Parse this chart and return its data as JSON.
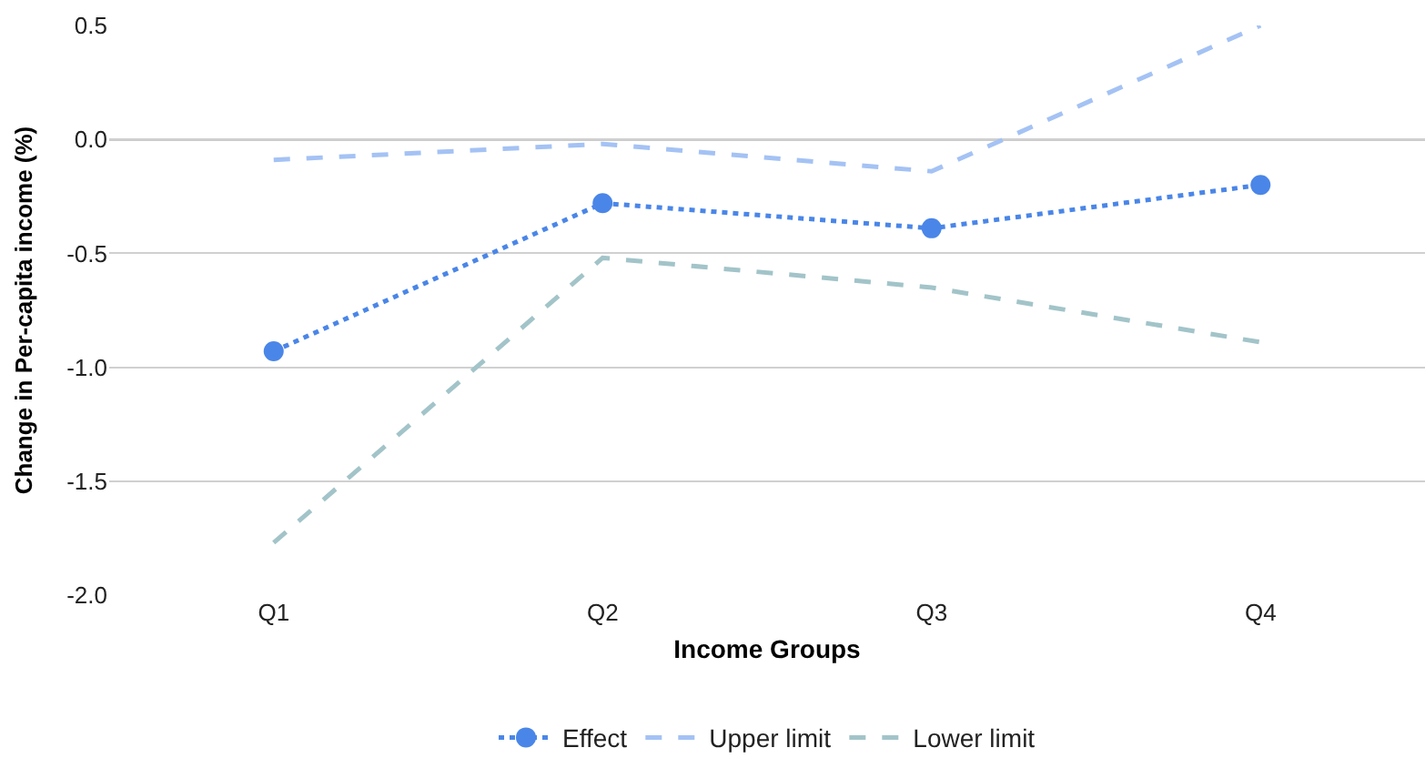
{
  "chart_data": {
    "type": "line",
    "xlabel": "Income Groups",
    "ylabel": "Change in Per-capita income (%)",
    "categories": [
      "Q1",
      "Q2",
      "Q3",
      "Q4"
    ],
    "series": [
      {
        "name": "Effect",
        "color": "#4a86e8",
        "values": [
          -0.93,
          -0.28,
          -0.39,
          -0.2
        ],
        "marker": "circle",
        "line_style": "dotted"
      },
      {
        "name": "Upper limit",
        "color": "#a4c2f4",
        "values": [
          -0.09,
          -0.02,
          -0.14,
          0.5
        ],
        "marker": "none",
        "line_style": "dashed"
      },
      {
        "name": "Lower limit",
        "color": "#a2c4c9",
        "values": [
          -1.77,
          -0.52,
          -0.65,
          -0.89
        ],
        "marker": "none",
        "line_style": "dashed"
      }
    ],
    "ylim": [
      -2.0,
      0.5
    ],
    "yticks": [
      {
        "value": -2,
        "label": "-2.0"
      },
      {
        "value": -1.5,
        "label": "-1.5"
      },
      {
        "value": -1,
        "label": "-1.0"
      },
      {
        "value": -0.5,
        "label": "-0.5"
      },
      {
        "value": 0,
        "label": "0.0"
      },
      {
        "value": 0.5,
        "label": "0.5"
      }
    ],
    "ref_lines": [
      {
        "axis": "y",
        "value": 0,
        "color": "#333333",
        "line_style": "solid"
      }
    ],
    "grid": "y",
    "legend": "bottom"
  }
}
